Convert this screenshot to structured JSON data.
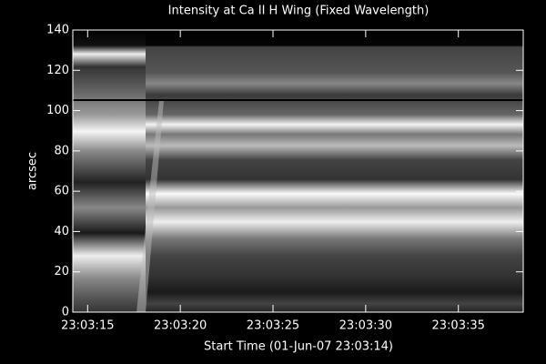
{
  "chart_data": {
    "type": "image",
    "title": "Intensity at Ca II H Wing (Fixed Wavelength)",
    "x_label": "Start Time (01-Jun-07 23:03:14)",
    "y_label": "arcsec",
    "xlim": [
      14.2,
      38.5
    ],
    "xticks": [
      {
        "value": 15,
        "label": "23:03:15"
      },
      {
        "value": 20,
        "label": "23:03:20"
      },
      {
        "value": 25,
        "label": "23:03:25"
      },
      {
        "value": 30,
        "label": "23:03:30"
      },
      {
        "value": 35,
        "label": "23:03:35"
      }
    ],
    "ylim": [
      0,
      140
    ],
    "yticks": [
      0,
      20,
      40,
      60,
      80,
      100,
      120,
      140
    ]
  }
}
